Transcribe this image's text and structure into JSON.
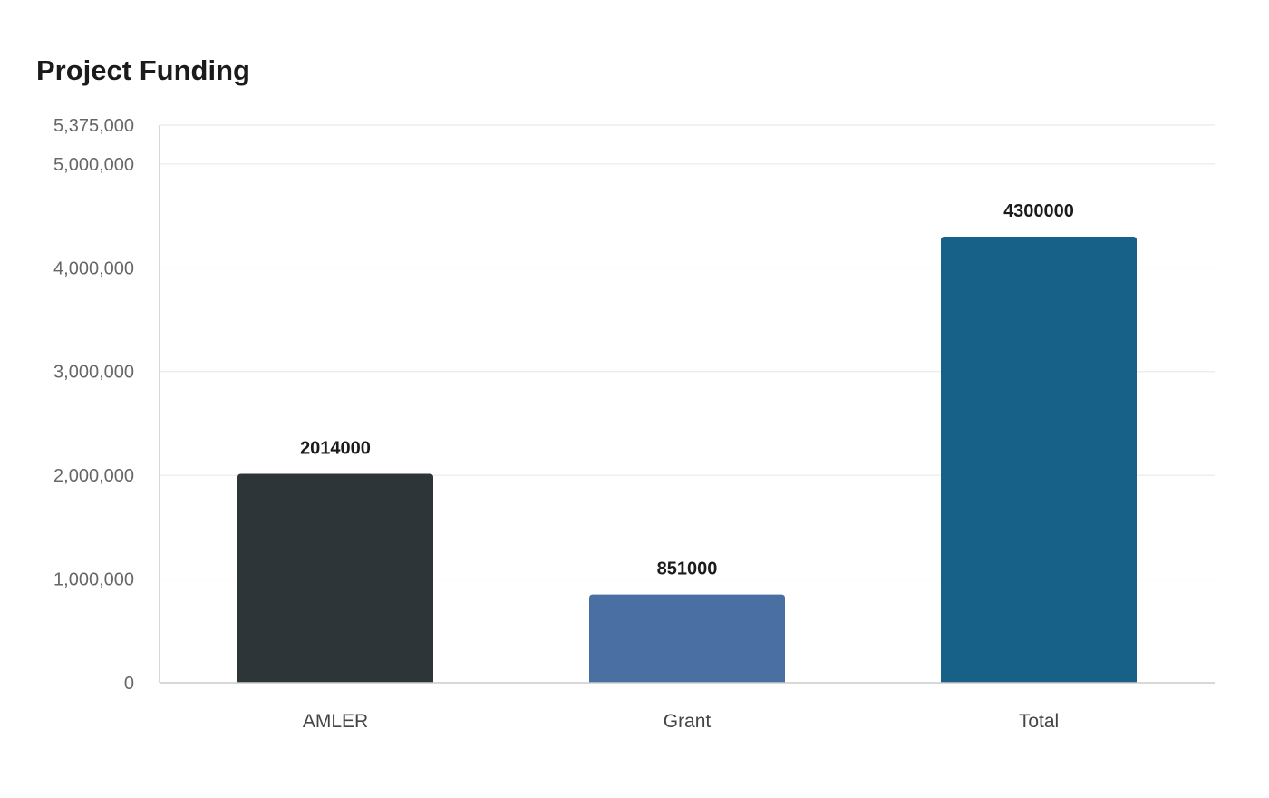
{
  "chart_data": {
    "type": "bar",
    "title": "Project Funding",
    "categories": [
      "AMLER",
      "Grant",
      "Total"
    ],
    "values": [
      2014000,
      851000,
      4300000
    ],
    "data_labels": [
      "2014000",
      "851000",
      "4300000"
    ],
    "colors": [
      "#2e3538",
      "#4a6fa3",
      "#176188"
    ],
    "xlabel": "",
    "ylabel": "",
    "ylim": [
      0,
      5375000
    ],
    "yticks": [
      0,
      1000000,
      2000000,
      3000000,
      4000000,
      5000000,
      5375000
    ],
    "ytick_labels": [
      "0",
      "1,000,000",
      "2,000,000",
      "3,000,000",
      "4,000,000",
      "5,000,000",
      "5,375,000"
    ],
    "grid": true,
    "legend": "none"
  }
}
